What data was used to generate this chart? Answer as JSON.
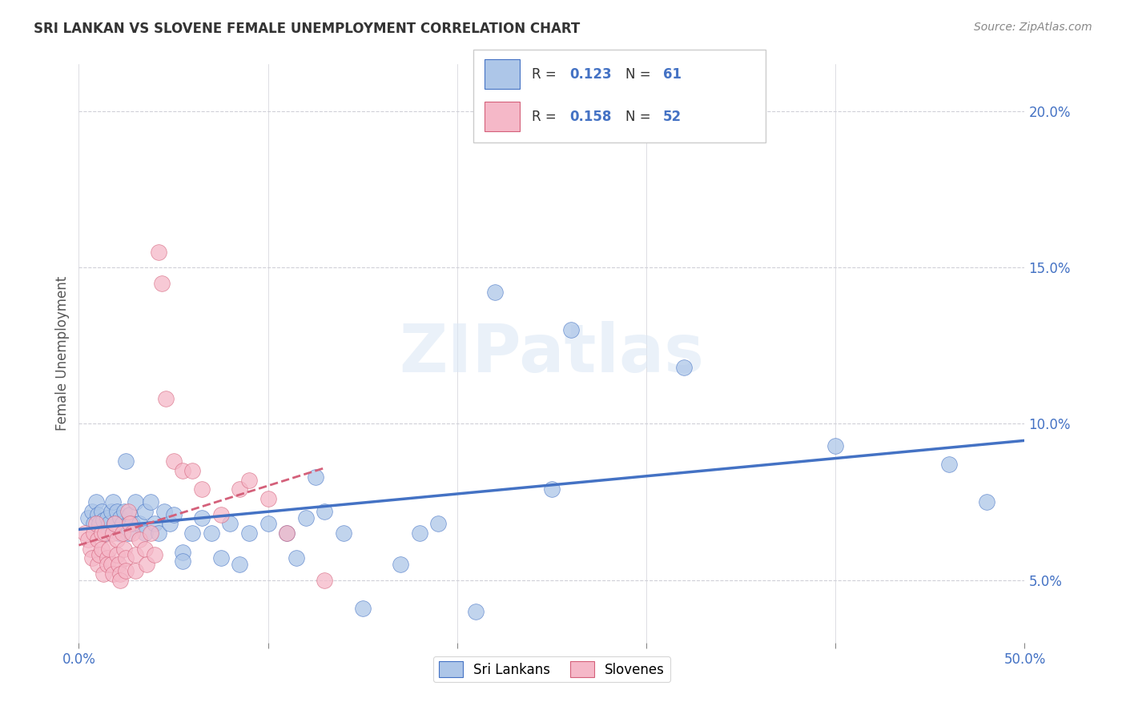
{
  "title": "SRI LANKAN VS SLOVENE FEMALE UNEMPLOYMENT CORRELATION CHART",
  "source": "Source: ZipAtlas.com",
  "ylabel": "Female Unemployment",
  "xlim": [
    0,
    0.5
  ],
  "ylim": [
    0.03,
    0.215
  ],
  "xtick_vals": [
    0.0,
    0.1,
    0.2,
    0.3,
    0.4,
    0.5
  ],
  "xtick_labels_show": [
    "0.0%",
    "",
    "",
    "",
    "",
    "50.0%"
  ],
  "ytick_vals": [
    0.05,
    0.1,
    0.15,
    0.2
  ],
  "ytick_labels": [
    "5.0%",
    "10.0%",
    "15.0%",
    "20.0%"
  ],
  "sri_lankan_R": 0.123,
  "sri_lankan_N": 61,
  "slovene_R": 0.158,
  "slovene_N": 52,
  "sri_lankan_color": "#adc6e8",
  "slovene_color": "#f5b8c8",
  "trendline_sri_color": "#4472c4",
  "trendline_slo_color": "#d4607a",
  "legend_text_color": "#4472c4",
  "background_color": "#ffffff",
  "grid_color": "#d0d0d8",
  "watermark": "ZIPatlas",
  "sri_lankan_scatter": [
    [
      0.005,
      0.07
    ],
    [
      0.007,
      0.072
    ],
    [
      0.008,
      0.068
    ],
    [
      0.009,
      0.075
    ],
    [
      0.01,
      0.071
    ],
    [
      0.011,
      0.068
    ],
    [
      0.012,
      0.072
    ],
    [
      0.013,
      0.069
    ],
    [
      0.014,
      0.065
    ],
    [
      0.015,
      0.07
    ],
    [
      0.016,
      0.068
    ],
    [
      0.017,
      0.072
    ],
    [
      0.018,
      0.075
    ],
    [
      0.019,
      0.068
    ],
    [
      0.02,
      0.072
    ],
    [
      0.021,
      0.065
    ],
    [
      0.022,
      0.07
    ],
    [
      0.023,
      0.068
    ],
    [
      0.024,
      0.072
    ],
    [
      0.025,
      0.088
    ],
    [
      0.026,
      0.065
    ],
    [
      0.027,
      0.071
    ],
    [
      0.028,
      0.068
    ],
    [
      0.03,
      0.075
    ],
    [
      0.032,
      0.068
    ],
    [
      0.035,
      0.065
    ],
    [
      0.035,
      0.072
    ],
    [
      0.038,
      0.075
    ],
    [
      0.04,
      0.068
    ],
    [
      0.042,
      0.065
    ],
    [
      0.045,
      0.072
    ],
    [
      0.048,
      0.068
    ],
    [
      0.05,
      0.071
    ],
    [
      0.055,
      0.059
    ],
    [
      0.055,
      0.056
    ],
    [
      0.06,
      0.065
    ],
    [
      0.065,
      0.07
    ],
    [
      0.07,
      0.065
    ],
    [
      0.075,
      0.057
    ],
    [
      0.08,
      0.068
    ],
    [
      0.085,
      0.055
    ],
    [
      0.09,
      0.065
    ],
    [
      0.1,
      0.068
    ],
    [
      0.11,
      0.065
    ],
    [
      0.115,
      0.057
    ],
    [
      0.12,
      0.07
    ],
    [
      0.125,
      0.083
    ],
    [
      0.13,
      0.072
    ],
    [
      0.14,
      0.065
    ],
    [
      0.15,
      0.041
    ],
    [
      0.17,
      0.055
    ],
    [
      0.18,
      0.065
    ],
    [
      0.19,
      0.068
    ],
    [
      0.21,
      0.04
    ],
    [
      0.22,
      0.142
    ],
    [
      0.25,
      0.079
    ],
    [
      0.26,
      0.13
    ],
    [
      0.32,
      0.118
    ],
    [
      0.4,
      0.093
    ],
    [
      0.46,
      0.087
    ],
    [
      0.48,
      0.075
    ]
  ],
  "slovene_scatter": [
    [
      0.003,
      0.065
    ],
    [
      0.005,
      0.063
    ],
    [
      0.006,
      0.06
    ],
    [
      0.007,
      0.057
    ],
    [
      0.008,
      0.065
    ],
    [
      0.009,
      0.068
    ],
    [
      0.01,
      0.063
    ],
    [
      0.01,
      0.055
    ],
    [
      0.011,
      0.058
    ],
    [
      0.012,
      0.065
    ],
    [
      0.012,
      0.06
    ],
    [
      0.013,
      0.052
    ],
    [
      0.014,
      0.065
    ],
    [
      0.015,
      0.057
    ],
    [
      0.015,
      0.055
    ],
    [
      0.016,
      0.06
    ],
    [
      0.017,
      0.055
    ],
    [
      0.018,
      0.052
    ],
    [
      0.018,
      0.065
    ],
    [
      0.019,
      0.068
    ],
    [
      0.02,
      0.063
    ],
    [
      0.02,
      0.058
    ],
    [
      0.021,
      0.055
    ],
    [
      0.022,
      0.052
    ],
    [
      0.022,
      0.05
    ],
    [
      0.023,
      0.065
    ],
    [
      0.024,
      0.06
    ],
    [
      0.025,
      0.057
    ],
    [
      0.025,
      0.053
    ],
    [
      0.026,
      0.072
    ],
    [
      0.027,
      0.068
    ],
    [
      0.028,
      0.065
    ],
    [
      0.03,
      0.058
    ],
    [
      0.03,
      0.053
    ],
    [
      0.032,
      0.063
    ],
    [
      0.035,
      0.06
    ],
    [
      0.036,
      0.055
    ],
    [
      0.038,
      0.065
    ],
    [
      0.04,
      0.058
    ],
    [
      0.042,
      0.155
    ],
    [
      0.044,
      0.145
    ],
    [
      0.046,
      0.108
    ],
    [
      0.05,
      0.088
    ],
    [
      0.055,
      0.085
    ],
    [
      0.06,
      0.085
    ],
    [
      0.065,
      0.079
    ],
    [
      0.075,
      0.071
    ],
    [
      0.085,
      0.079
    ],
    [
      0.09,
      0.082
    ],
    [
      0.1,
      0.076
    ],
    [
      0.11,
      0.065
    ],
    [
      0.13,
      0.05
    ]
  ]
}
